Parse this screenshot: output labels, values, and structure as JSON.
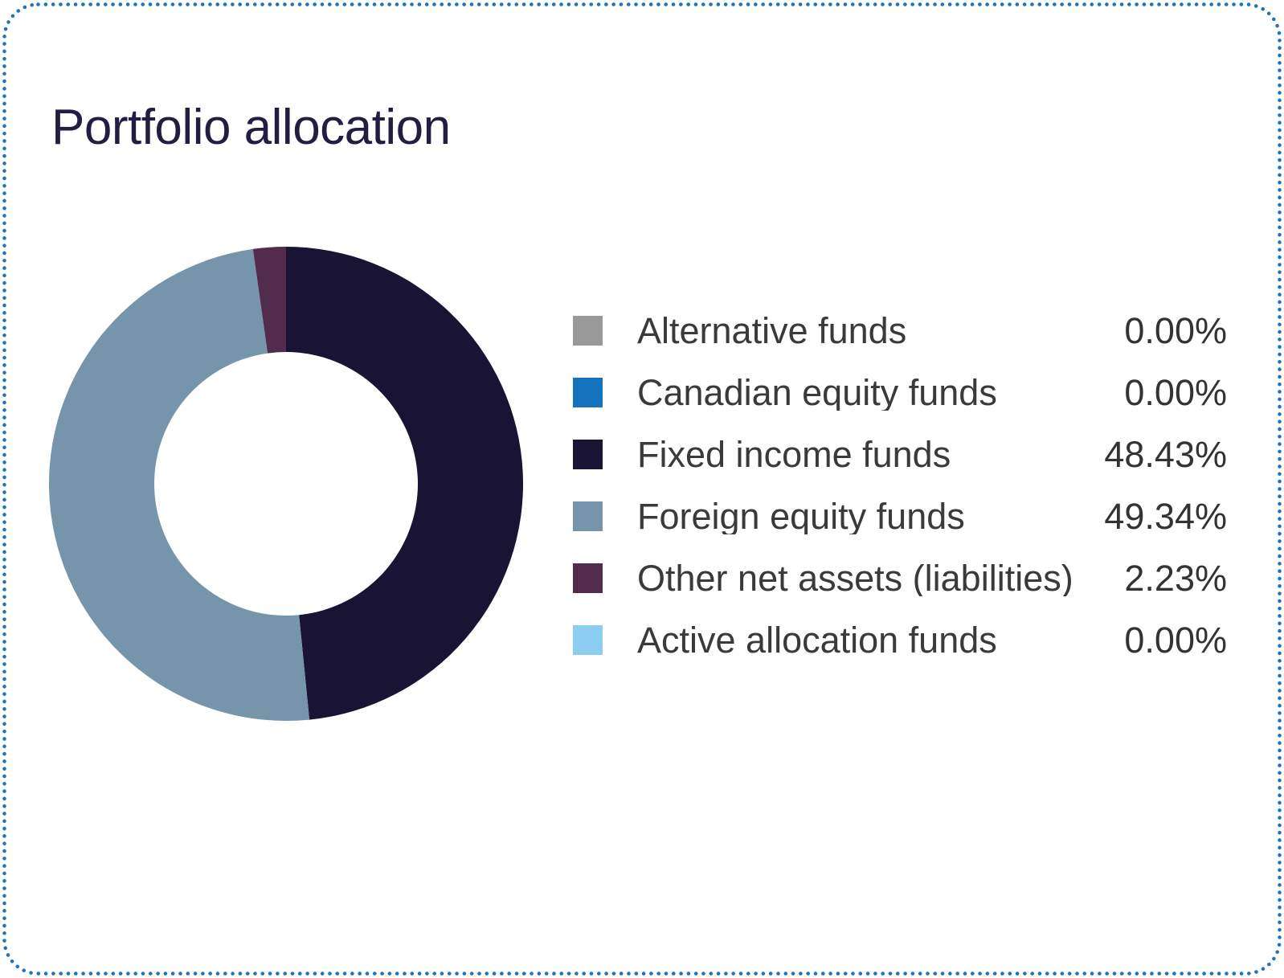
{
  "page": {
    "background_color": "#ffffff",
    "border_dot_color": "#1B74BC"
  },
  "header": {
    "title": "Portfolio allocation",
    "title_color": "#221E41"
  },
  "chart_data": {
    "type": "pie",
    "variant": "donut",
    "title": "Portfolio allocation",
    "unit": "%",
    "start_angle_deg": 0,
    "direction": "clockwise",
    "inner_radius_ratio": 0.556,
    "legend_position": "right",
    "total": 100,
    "items": [
      {
        "label": "Alternative funds",
        "value": 0.0,
        "display": "0.00%",
        "color": "#999999"
      },
      {
        "label": "Canadian equity funds",
        "value": 0.0,
        "display": "0.00%",
        "color": "#1473BC"
      },
      {
        "label": "Fixed income funds",
        "value": 48.43,
        "display": "48.43%",
        "color": "#191434"
      },
      {
        "label": "Foreign equity funds",
        "value": 49.34,
        "display": "49.34%",
        "color": "#7695AB"
      },
      {
        "label": "Other net assets (liabilities)",
        "value": 2.23,
        "display": "2.23%",
        "color": "#522C4D"
      },
      {
        "label": "Active allocation funds",
        "value": 0.0,
        "display": "0.00%",
        "color": "#8CCEF2"
      }
    ]
  }
}
